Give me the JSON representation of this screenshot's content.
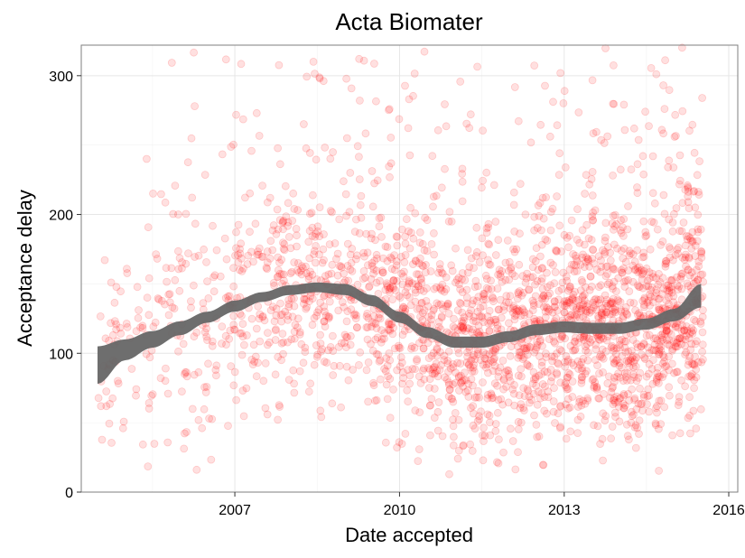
{
  "chart_data": {
    "type": "scatter",
    "title": "Acta Biomater",
    "xlabel": "Date accepted",
    "ylabel": "Acceptance delay",
    "xlim": [
      "2004-03-15",
      "2016-03-01"
    ],
    "ylim": [
      0,
      322
    ],
    "x_ticks": [
      {
        "date": "2007-01-01",
        "label": "2007"
      },
      {
        "date": "2010-01-01",
        "label": "2010"
      },
      {
        "date": "2013-01-01",
        "label": "2013"
      },
      {
        "date": "2016-01-01",
        "label": "2016"
      }
    ],
    "y_ticks": [
      {
        "value": 0,
        "label": "0"
      },
      {
        "value": 100,
        "label": "100"
      },
      {
        "value": 200,
        "label": "200"
      },
      {
        "value": 300,
        "label": "300"
      }
    ],
    "grid": true,
    "legend": "none",
    "point_color": "#ff0000",
    "point_opacity": 0.12,
    "smooth_band_color": "#666666",
    "n_points_approx": 2600,
    "smooth": [
      {
        "date": "2004-07-01",
        "lower": 78,
        "upper": 105
      },
      {
        "date": "2005-01-01",
        "lower": 95,
        "upper": 110
      },
      {
        "date": "2005-07-01",
        "lower": 104,
        "upper": 116
      },
      {
        "date": "2006-01-01",
        "lower": 113,
        "upper": 123
      },
      {
        "date": "2006-07-01",
        "lower": 122,
        "upper": 130
      },
      {
        "date": "2007-01-01",
        "lower": 130,
        "upper": 138
      },
      {
        "date": "2007-07-01",
        "lower": 137,
        "upper": 144
      },
      {
        "date": "2008-01-01",
        "lower": 142,
        "upper": 149
      },
      {
        "date": "2008-07-01",
        "lower": 144,
        "upper": 151
      },
      {
        "date": "2009-01-01",
        "lower": 142,
        "upper": 150
      },
      {
        "date": "2009-07-01",
        "lower": 134,
        "upper": 142
      },
      {
        "date": "2010-01-01",
        "lower": 122,
        "upper": 130
      },
      {
        "date": "2010-07-01",
        "lower": 111,
        "upper": 119
      },
      {
        "date": "2011-01-01",
        "lower": 104,
        "upper": 112
      },
      {
        "date": "2011-07-01",
        "lower": 104,
        "upper": 112
      },
      {
        "date": "2012-01-01",
        "lower": 108,
        "upper": 116
      },
      {
        "date": "2012-07-01",
        "lower": 113,
        "upper": 121
      },
      {
        "date": "2013-01-01",
        "lower": 115,
        "upper": 123
      },
      {
        "date": "2013-07-01",
        "lower": 114,
        "upper": 122
      },
      {
        "date": "2014-01-01",
        "lower": 114,
        "upper": 122
      },
      {
        "date": "2014-07-01",
        "lower": 117,
        "upper": 125
      },
      {
        "date": "2015-01-01",
        "lower": 123,
        "upper": 132
      },
      {
        "date": "2015-07-01",
        "lower": 133,
        "upper": 150
      }
    ]
  }
}
